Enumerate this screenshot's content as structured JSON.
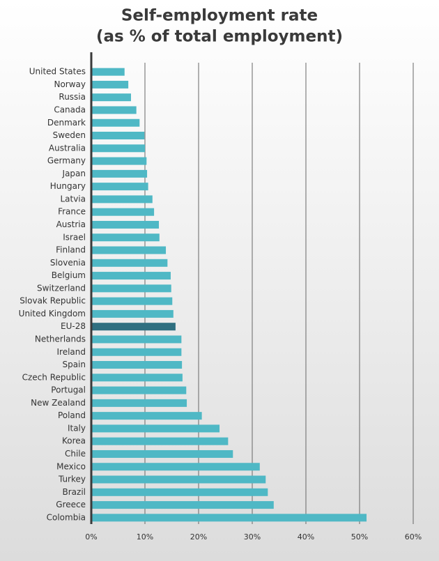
{
  "chart_data": {
    "type": "hbar",
    "title": "Self-employment rate",
    "subtitle": "(as % of total employment)",
    "categories": [
      "United States",
      "Norway",
      "Russia",
      "Canada",
      "Denmark",
      "Sweden",
      "Australia",
      "Germany",
      "Japan",
      "Hungary",
      "Latvia",
      "France",
      "Austria",
      "Israel",
      "Finland",
      "Slovenia",
      "Belgium",
      "Switzerland",
      "Slovak Republic",
      "United Kingdom",
      "EU-28",
      "Netherlands",
      "Ireland",
      "Spain",
      "Czech Republic",
      "Portugal",
      "New Zealand",
      "Poland",
      "Italy",
      "Korea",
      "Chile",
      "Mexico",
      "Turkey",
      "Brazil",
      "Greece",
      "Colombia"
    ],
    "values": [
      6.2,
      6.9,
      7.4,
      8.4,
      9.0,
      9.9,
      10.0,
      10.3,
      10.4,
      10.6,
      11.4,
      11.7,
      12.6,
      12.7,
      13.9,
      14.2,
      14.8,
      14.9,
      15.1,
      15.3,
      15.7,
      16.8,
      16.8,
      16.9,
      17.0,
      17.7,
      17.8,
      20.6,
      23.9,
      25.5,
      26.4,
      31.4,
      32.5,
      32.9,
      34.0,
      51.3
    ],
    "colors": [
      "#4fb8c5",
      "#4fb8c5",
      "#4fb8c5",
      "#4fb8c5",
      "#4fb8c5",
      "#4fb8c5",
      "#4fb8c5",
      "#4fb8c5",
      "#4fb8c5",
      "#4fb8c5",
      "#4fb8c5",
      "#4fb8c5",
      "#4fb8c5",
      "#4fb8c5",
      "#4fb8c5",
      "#4fb8c5",
      "#4fb8c5",
      "#4fb8c5",
      "#4fb8c5",
      "#4fb8c5",
      "#2f6f80",
      "#4fb8c5",
      "#4fb8c5",
      "#4fb8c5",
      "#4fb8c5",
      "#4fb8c5",
      "#4fb8c5",
      "#4fb8c5",
      "#4fb8c5",
      "#4fb8c5",
      "#4fb8c5",
      "#4fb8c5",
      "#4fb8c5",
      "#4fb8c5",
      "#4fb8c5",
      "#4fb8c5"
    ],
    "xlim": [
      0,
      60
    ],
    "xticks": [
      {
        "value": 0,
        "label": "0%"
      },
      {
        "value": 10,
        "label": "10%"
      },
      {
        "value": 20,
        "label": "20%"
      },
      {
        "value": 30,
        "label": "30%"
      },
      {
        "value": 40,
        "label": "40%"
      },
      {
        "value": 50,
        "label": "50%"
      },
      {
        "value": 60,
        "label": "60%"
      }
    ],
    "grid": true
  }
}
